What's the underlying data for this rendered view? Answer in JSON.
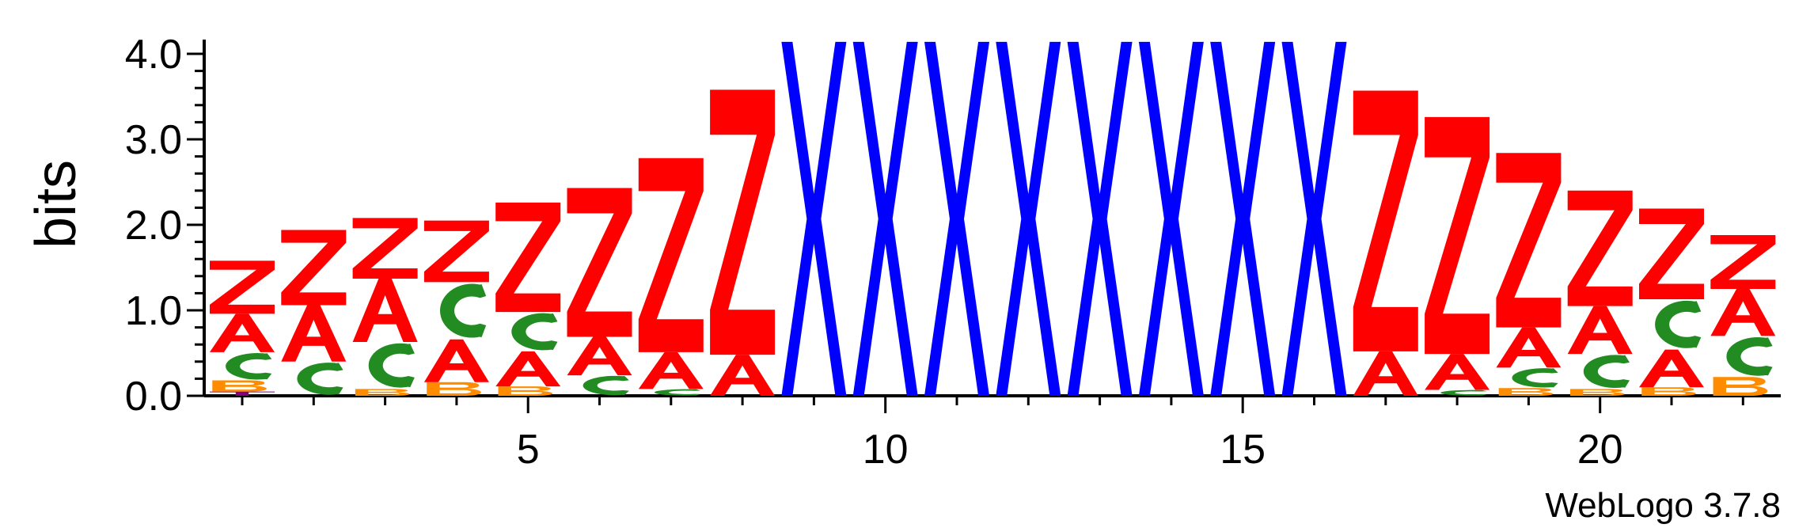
{
  "chart_data": {
    "type": "sequence-logo",
    "ylabel": "bits",
    "ylim": [
      0,
      4.0
    ],
    "y_ticks": [
      "0.0",
      "1.0",
      "2.0",
      "3.0",
      "4.0"
    ],
    "x_range": [
      1,
      22
    ],
    "x_ticks": [
      "5",
      "10",
      "15",
      "20"
    ],
    "credit": "WebLogo 3.7.8",
    "colors": {
      "Z": "#ff0000",
      "A": "#ff0000",
      "X": "#0000ff",
      "C": "#228b22",
      "B": "#ff8c00",
      "T": "#800080"
    },
    "positions": [
      {
        "pos": 1,
        "stack": [
          [
            "T",
            0.05
          ],
          [
            "B",
            0.13
          ],
          [
            "C",
            0.33
          ],
          [
            "A",
            0.45
          ],
          [
            "Z",
            0.62
          ]
        ]
      },
      {
        "pos": 2,
        "stack": [
          [
            "C",
            0.4
          ],
          [
            "A",
            0.66
          ],
          [
            "Z",
            0.88
          ]
        ]
      },
      {
        "pos": 3,
        "stack": [
          [
            "B",
            0.08
          ],
          [
            "C",
            0.55
          ],
          [
            "A",
            0.74
          ],
          [
            "Z",
            0.71
          ]
        ]
      },
      {
        "pos": 4,
        "stack": [
          [
            "B",
            0.16
          ],
          [
            "A",
            0.5
          ],
          [
            "C",
            0.67
          ],
          [
            "Z",
            0.72
          ]
        ]
      },
      {
        "pos": 5,
        "stack": [
          [
            "B",
            0.11
          ],
          [
            "A",
            0.41
          ],
          [
            "C",
            0.46
          ],
          [
            "Z",
            1.28
          ]
        ]
      },
      {
        "pos": 6,
        "stack": [
          [
            "C",
            0.24
          ],
          [
            "A",
            0.45
          ],
          [
            "Z",
            1.74
          ]
        ]
      },
      {
        "pos": 7,
        "stack": [
          [
            "C",
            0.08
          ],
          [
            "A",
            0.43
          ],
          [
            "Z",
            2.27
          ]
        ]
      },
      {
        "pos": 8,
        "stack": [
          [
            "A",
            0.48
          ],
          [
            "Z",
            3.1
          ]
        ]
      },
      {
        "pos": 9,
        "stack": [
          [
            "X",
            4.14
          ]
        ]
      },
      {
        "pos": 10,
        "stack": [
          [
            "X",
            4.14
          ]
        ]
      },
      {
        "pos": 11,
        "stack": [
          [
            "X",
            4.14
          ]
        ]
      },
      {
        "pos": 12,
        "stack": [
          [
            "X",
            4.14
          ]
        ]
      },
      {
        "pos": 13,
        "stack": [
          [
            "X",
            4.14
          ]
        ]
      },
      {
        "pos": 14,
        "stack": [
          [
            "X",
            4.14
          ]
        ]
      },
      {
        "pos": 15,
        "stack": [
          [
            "X",
            4.14
          ]
        ]
      },
      {
        "pos": 16,
        "stack": [
          [
            "X",
            4.14
          ]
        ]
      },
      {
        "pos": 17,
        "stack": [
          [
            "A",
            0.52
          ],
          [
            "Z",
            3.05
          ]
        ]
      },
      {
        "pos": 18,
        "stack": [
          [
            "C",
            0.07
          ],
          [
            "A",
            0.42
          ],
          [
            "Z",
            2.77
          ]
        ]
      },
      {
        "pos": 19,
        "stack": [
          [
            "B",
            0.09
          ],
          [
            "C",
            0.24
          ],
          [
            "A",
            0.47
          ],
          [
            "Z",
            2.04
          ]
        ]
      },
      {
        "pos": 20,
        "stack": [
          [
            "B",
            0.08
          ],
          [
            "C",
            0.41
          ],
          [
            "A",
            0.56
          ],
          [
            "Z",
            1.35
          ]
        ]
      },
      {
        "pos": 21,
        "stack": [
          [
            "B",
            0.1
          ],
          [
            "A",
            0.44
          ],
          [
            "C",
            0.59
          ],
          [
            "Z",
            1.06
          ]
        ]
      },
      {
        "pos": 22,
        "stack": [
          [
            "B",
            0.22
          ],
          [
            "C",
            0.48
          ],
          [
            "A",
            0.55
          ],
          [
            "Z",
            0.63
          ]
        ]
      }
    ]
  }
}
